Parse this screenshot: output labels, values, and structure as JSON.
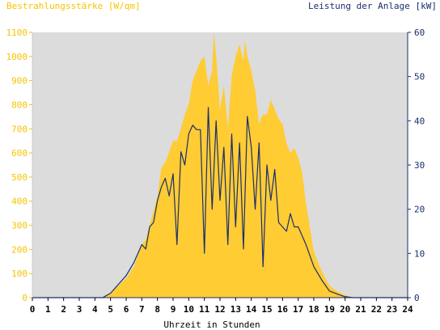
{
  "chart_data": {
    "type": "area",
    "ylabel_left": "Bestrahlungsstärke [W/qm]",
    "ylabel_right": "Leistung der Anlage [kW]",
    "xlabel": "Uhrzeit in Stunden",
    "xlim": [
      0,
      24
    ],
    "ylim_left": [
      0,
      1100
    ],
    "ylim_right": [
      0,
      60
    ],
    "x_ticks": [
      "0",
      "1",
      "2",
      "3",
      "4",
      "5",
      "6",
      "7",
      "8",
      "9",
      "10",
      "11",
      "12",
      "13",
      "14",
      "15",
      "16",
      "17",
      "18",
      "19",
      "20",
      "21",
      "22",
      "23",
      "24"
    ],
    "y_left_ticks": [
      "0",
      "100",
      "200",
      "300",
      "400",
      "500",
      "600",
      "700",
      "800",
      "900",
      "1000",
      "1100"
    ],
    "y_right_ticks": [
      "0",
      "10",
      "20",
      "30",
      "40",
      "50",
      "60"
    ],
    "grid": false,
    "series": [
      {
        "name": "Bestrahlungsstärke",
        "axis": "left",
        "style": "filled-area",
        "x": [
          0,
          4.5,
          5.0,
          5.5,
          6.0,
          6.5,
          7.0,
          7.25,
          7.5,
          8.0,
          8.25,
          8.5,
          9.0,
          9.25,
          9.5,
          9.75,
          10.0,
          10.25,
          10.5,
          10.75,
          11.0,
          11.25,
          11.5,
          11.6,
          11.75,
          12.0,
          12.25,
          12.5,
          12.75,
          13.0,
          13.25,
          13.5,
          13.6,
          13.75,
          14.0,
          14.25,
          14.5,
          14.75,
          15.0,
          15.25,
          15.5,
          15.75,
          16.0,
          16.25,
          16.5,
          16.75,
          17.0,
          17.25,
          17.5,
          18.0,
          18.5,
          19.0,
          19.5,
          20.0,
          20.5,
          21.0,
          24
        ],
        "y": [
          0,
          0,
          20,
          50,
          80,
          130,
          220,
          240,
          300,
          420,
          540,
          560,
          650,
          650,
          700,
          760,
          800,
          900,
          940,
          980,
          1000,
          880,
          940,
          1100,
          1000,
          780,
          880,
          700,
          920,
          1000,
          1050,
          980,
          1070,
          1000,
          940,
          860,
          720,
          760,
          760,
          820,
          780,
          740,
          720,
          640,
          600,
          620,
          580,
          520,
          390,
          190,
          110,
          50,
          25,
          10,
          2,
          0,
          0
        ]
      },
      {
        "name": "Leistung",
        "axis": "right",
        "style": "line",
        "x": [
          0,
          4.5,
          5.0,
          5.5,
          6.0,
          6.5,
          7.0,
          7.25,
          7.5,
          7.75,
          8.0,
          8.25,
          8.5,
          8.75,
          9.0,
          9.25,
          9.5,
          9.75,
          10.0,
          10.25,
          10.5,
          10.75,
          11.0,
          11.25,
          11.5,
          11.75,
          12.0,
          12.25,
          12.5,
          12.75,
          13.0,
          13.25,
          13.5,
          13.75,
          14.0,
          14.25,
          14.5,
          14.75,
          15.0,
          15.25,
          15.5,
          15.75,
          16.0,
          16.25,
          16.5,
          16.75,
          17.0,
          17.5,
          18.0,
          18.5,
          19.0,
          19.5,
          20.0,
          20.5,
          21.0,
          24
        ],
        "y": [
          0,
          0,
          1,
          3,
          5,
          8,
          12,
          11,
          16,
          17,
          22,
          25,
          27,
          23,
          28,
          12,
          33,
          30,
          37,
          39,
          38,
          38,
          10,
          43,
          20,
          40,
          22,
          34,
          12,
          37,
          16,
          35,
          11,
          41,
          34,
          20,
          35,
          7,
          30,
          22,
          29,
          17,
          16,
          15,
          19,
          16,
          16,
          12,
          7,
          4,
          1.5,
          0.8,
          0.2,
          0,
          0,
          0
        ]
      }
    ],
    "colors": {
      "background": "#ffffff",
      "plot_area": "#dcdcdc",
      "irradiance_fill": "#ffcc33",
      "power_line": "#1a2e6e",
      "left_axis_text": "#f5c400",
      "right_axis_text": "#1a2e6e",
      "x_axis_text": "#000000"
    }
  }
}
